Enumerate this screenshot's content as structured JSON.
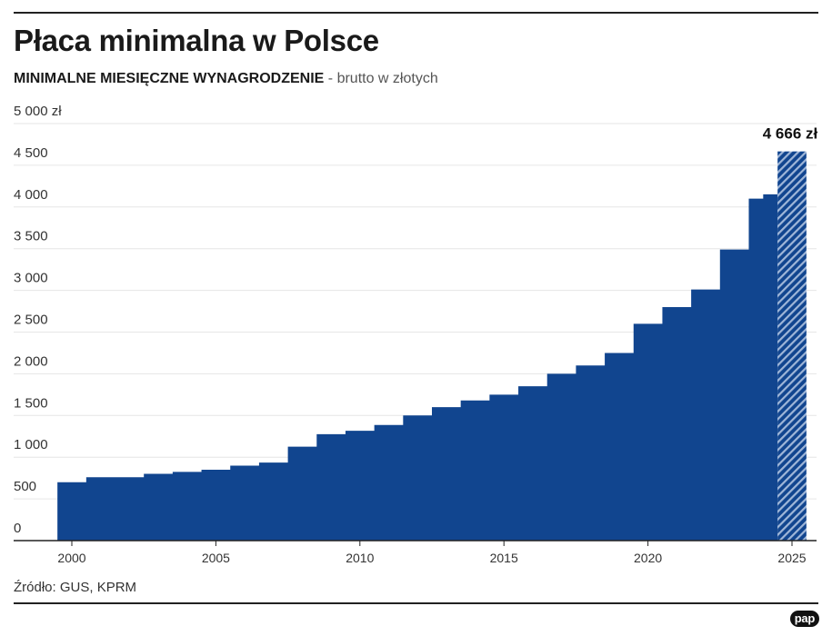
{
  "header": {
    "title": "Płaca minimalna w Polsce",
    "subtitle_strong": "MINIMALNE MIESIĘCZNE WYNAGRODZENIE",
    "subtitle_light": " - brutto w złotych"
  },
  "footer": {
    "source": "Źródło: GUS, KPRM",
    "logo": "pap"
  },
  "colors": {
    "bar": "#11458f",
    "grid": "#e6e6e6",
    "axis": "#222222"
  },
  "chart_data": {
    "type": "bar",
    "title": "Płaca minimalna w Polsce",
    "subtitle": "MINIMALNE MIESIĘCZNE WYNAGRODZENIE - brutto w złotych",
    "xlabel": "",
    "ylabel": "",
    "ylim": [
      0,
      5000
    ],
    "yticks": [
      0,
      500,
      1000,
      1500,
      2000,
      2500,
      3000,
      3500,
      4000,
      4500,
      5000
    ],
    "ytick_labels": [
      "0",
      "500",
      "1 000",
      "1 500",
      "2 000",
      "2 500",
      "3 000",
      "3 500",
      "4 000",
      "4 500",
      "5 000 zł"
    ],
    "xticks": [
      2000,
      2005,
      2010,
      2015,
      2020,
      2025
    ],
    "xtick_labels": [
      "2000",
      "2005",
      "2010",
      "2015",
      "2020",
      "2025"
    ],
    "grid": true,
    "step_points": [
      {
        "x": 1999.5,
        "value": 700
      },
      {
        "x": 2000.5,
        "value": 760
      },
      {
        "x": 2002.5,
        "value": 800
      },
      {
        "x": 2003.5,
        "value": 824
      },
      {
        "x": 2004.5,
        "value": 849
      },
      {
        "x": 2005.5,
        "value": 899
      },
      {
        "x": 2006.5,
        "value": 936
      },
      {
        "x": 2007.5,
        "value": 1126
      },
      {
        "x": 2008.5,
        "value": 1276
      },
      {
        "x": 2009.5,
        "value": 1317
      },
      {
        "x": 2010.5,
        "value": 1386
      },
      {
        "x": 2011.5,
        "value": 1500
      },
      {
        "x": 2012.5,
        "value": 1600
      },
      {
        "x": 2013.5,
        "value": 1680
      },
      {
        "x": 2014.5,
        "value": 1750
      },
      {
        "x": 2015.5,
        "value": 1850
      },
      {
        "x": 2016.5,
        "value": 2000
      },
      {
        "x": 2017.5,
        "value": 2100
      },
      {
        "x": 2018.5,
        "value": 2250
      },
      {
        "x": 2019.5,
        "value": 2600
      },
      {
        "x": 2020.5,
        "value": 2800
      },
      {
        "x": 2021.5,
        "value": 3010
      },
      {
        "x": 2022.5,
        "value": 3490
      },
      {
        "x": 2023.5,
        "value": 4100
      },
      {
        "x": 2024.0,
        "value": 4152
      }
    ],
    "projected": {
      "x_start": 2024.5,
      "x_end": 2025.5,
      "value": 4666,
      "pattern": "hatched"
    },
    "x_end": 2024.5,
    "annotation": {
      "text": "4 666 zł",
      "x": 2025.0,
      "value": 4666
    }
  }
}
